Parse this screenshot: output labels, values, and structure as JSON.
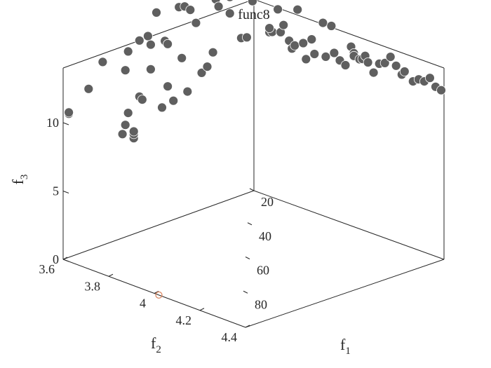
{
  "chart_data": {
    "type": "scatter",
    "title": "func8",
    "xlabel": "f",
    "xlabel_sub": "1",
    "ylabel": "f",
    "ylabel_sub": "2",
    "zlabel": "f",
    "zlabel_sub": "3",
    "x_ticks": [
      "20",
      "40",
      "60",
      "80"
    ],
    "y_ticks": [
      "3.6",
      "3.8",
      "4",
      "4.2",
      "4.4"
    ],
    "z_ticks": [
      "0",
      "5",
      "10"
    ],
    "grid": false,
    "colors": {
      "points_fill": "#5f5f5f",
      "points_stroke": "#ffffff",
      "highlight_stroke": "#d9825b",
      "axis": "#262626"
    },
    "series": [
      {
        "x": [
          100,
          100,
          100,
          100,
          100,
          100,
          100,
          100,
          100,
          100,
          100,
          100,
          100,
          100,
          100,
          100,
          100,
          100,
          100,
          100,
          100,
          100,
          100,
          100,
          100,
          100,
          100,
          100,
          100,
          100,
          100,
          100,
          100,
          100,
          100,
          100,
          100,
          100,
          100,
          100,
          100,
          100,
          100,
          100,
          100,
          100,
          100,
          100,
          100,
          100,
          100,
          100,
          100,
          100,
          100,
          100,
          100,
          100,
          100,
          100,
          100,
          100,
          100,
          100,
          100,
          100,
          100,
          100,
          100,
          100,
          100,
          100,
          100,
          100,
          100,
          100,
          100,
          100,
          100,
          100,
          100,
          100,
          100,
          100,
          100,
          100
        ],
        "y": [
          3.62,
          3.62,
          3.69,
          3.74,
          3.82,
          3.83,
          3.85,
          3.81,
          3.82,
          3.83,
          3.87,
          3.85,
          3.85,
          3.87,
          3.88,
          3.91,
          3.9,
          3.91,
          3.93,
          3.96,
          3.95,
          3.97,
          3.97,
          3.99,
          4.01,
          4.02,
          4.03,
          4.05,
          4.04,
          4.07,
          4.09,
          4.1,
          4.11,
          4.13,
          4.14,
          4.15,
          4.16,
          4.19,
          4.19,
          4.21,
          4.22,
          4.23,
          4.25,
          4.27,
          4.28,
          4.3,
          4.33,
          4.34,
          4.33,
          4.36,
          4.37,
          4.38,
          4.4,
          4.41,
          4.42,
          4.43,
          4.45,
          4.46,
          4.48,
          4.49,
          4.52,
          4.53,
          4.55,
          4.56,
          4.58,
          4.6,
          4.62,
          4.63,
          4.63,
          4.65,
          4.66,
          4.67,
          4.68,
          4.7,
          4.72,
          4.74,
          4.76,
          4.78,
          4.8,
          4.81,
          4.84,
          4.86,
          4.88,
          4.9,
          4.92,
          4.94
        ],
        "z": [
          10.5,
          10.6,
          11.8,
          13.4,
          12.2,
          9.0,
          7.0,
          7.6,
          8.2,
          13.5,
          9.9,
          7.3,
          7.5,
          14.0,
          9.6,
          11.6,
          14.1,
          13.4,
          15.6,
          13.3,
          8.5,
          9.9,
          13.0,
          8.7,
          15.4,
          11.6,
          15.3,
          14.9,
          9.0,
          13.8,
          10.0,
          16.0,
          10.3,
          11.2,
          15.0,
          14.4,
          16.4,
          13.6,
          14.8,
          15.2,
          15.3,
          11.5,
          11.4,
          13.9,
          15.2,
          15.0,
          12.0,
          12.1,
          12.3,
          13.9,
          12.3,
          12.9,
          11.9,
          11.4,
          11.7,
          14.4,
          12.1,
          11.0,
          12.6,
          11.6,
          14.1,
          11.7,
          14.1,
          12.2,
          11.8,
          11.6,
          13.1,
          12.7,
          12.5,
          12.4,
          12.5,
          12.8,
          12.4,
          11.8,
          12.6,
          12.8,
          13.4,
          12.9,
          12.4,
          12.7,
          12.2,
          12.5,
          12.5,
          12.9,
          12.4,
          12.3
        ],
        "fill": "#5f5f5f"
      },
      {
        "x": [
          100
        ],
        "y": [
          4.02
        ],
        "z": [
          0
        ],
        "style": "open-circle",
        "color": "#d9825b"
      }
    ]
  }
}
